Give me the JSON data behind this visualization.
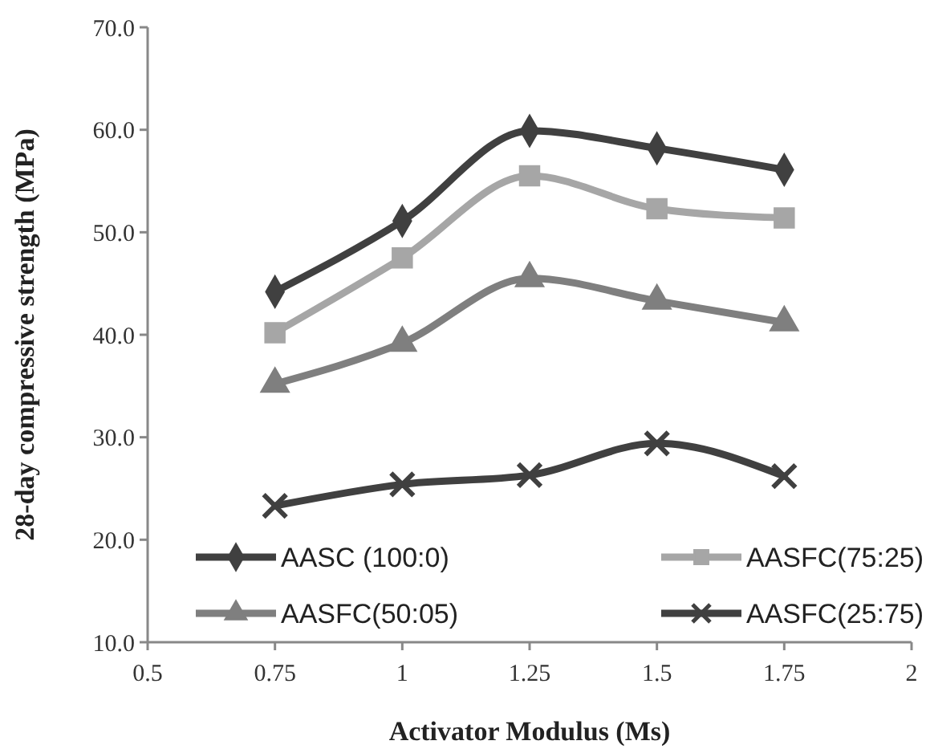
{
  "chart_data": {
    "type": "line",
    "xlabel": "Activator Modulus (Ms)",
    "ylabel": "28-day compressive strength (MPa)",
    "x": [
      0.75,
      1,
      1.25,
      1.5,
      1.75
    ],
    "xlim": [
      0.5,
      2
    ],
    "xticks": [
      0.5,
      0.75,
      1,
      1.25,
      1.5,
      1.75,
      2
    ],
    "ylim": [
      10,
      70
    ],
    "yticks": [
      {
        "value": 10,
        "label": "10.0"
      },
      {
        "value": 20,
        "label": "20.0"
      },
      {
        "value": 30,
        "label": "30.0"
      },
      {
        "value": 40,
        "label": "40.0"
      },
      {
        "value": 50,
        "label": "50.0"
      },
      {
        "value": 60,
        "label": "60.0"
      },
      {
        "value": 70,
        "label": "70.0"
      }
    ],
    "grid": false,
    "legend": "bottom",
    "line_style": "solid",
    "series": [
      {
        "name": "AASC (100:0)",
        "color": "#404040",
        "marker": "diamond",
        "values": [
          44.2,
          51.1,
          59.9,
          58.2,
          56.1
        ]
      },
      {
        "name": "AASFC(75:25)",
        "color": "#a6a6a6",
        "marker": "square",
        "values": [
          40.2,
          47.5,
          55.5,
          52.3,
          51.4
        ]
      },
      {
        "name": "AASFC(50:05)",
        "color": "#7f7f7f",
        "marker": "triangle",
        "values": [
          35.2,
          39.2,
          45.5,
          43.3,
          41.2
        ]
      },
      {
        "name": "AASFC(25:75)",
        "color": "#404040",
        "marker": "cross",
        "values": [
          23.3,
          25.4,
          26.3,
          29.4,
          26.2
        ]
      }
    ]
  }
}
